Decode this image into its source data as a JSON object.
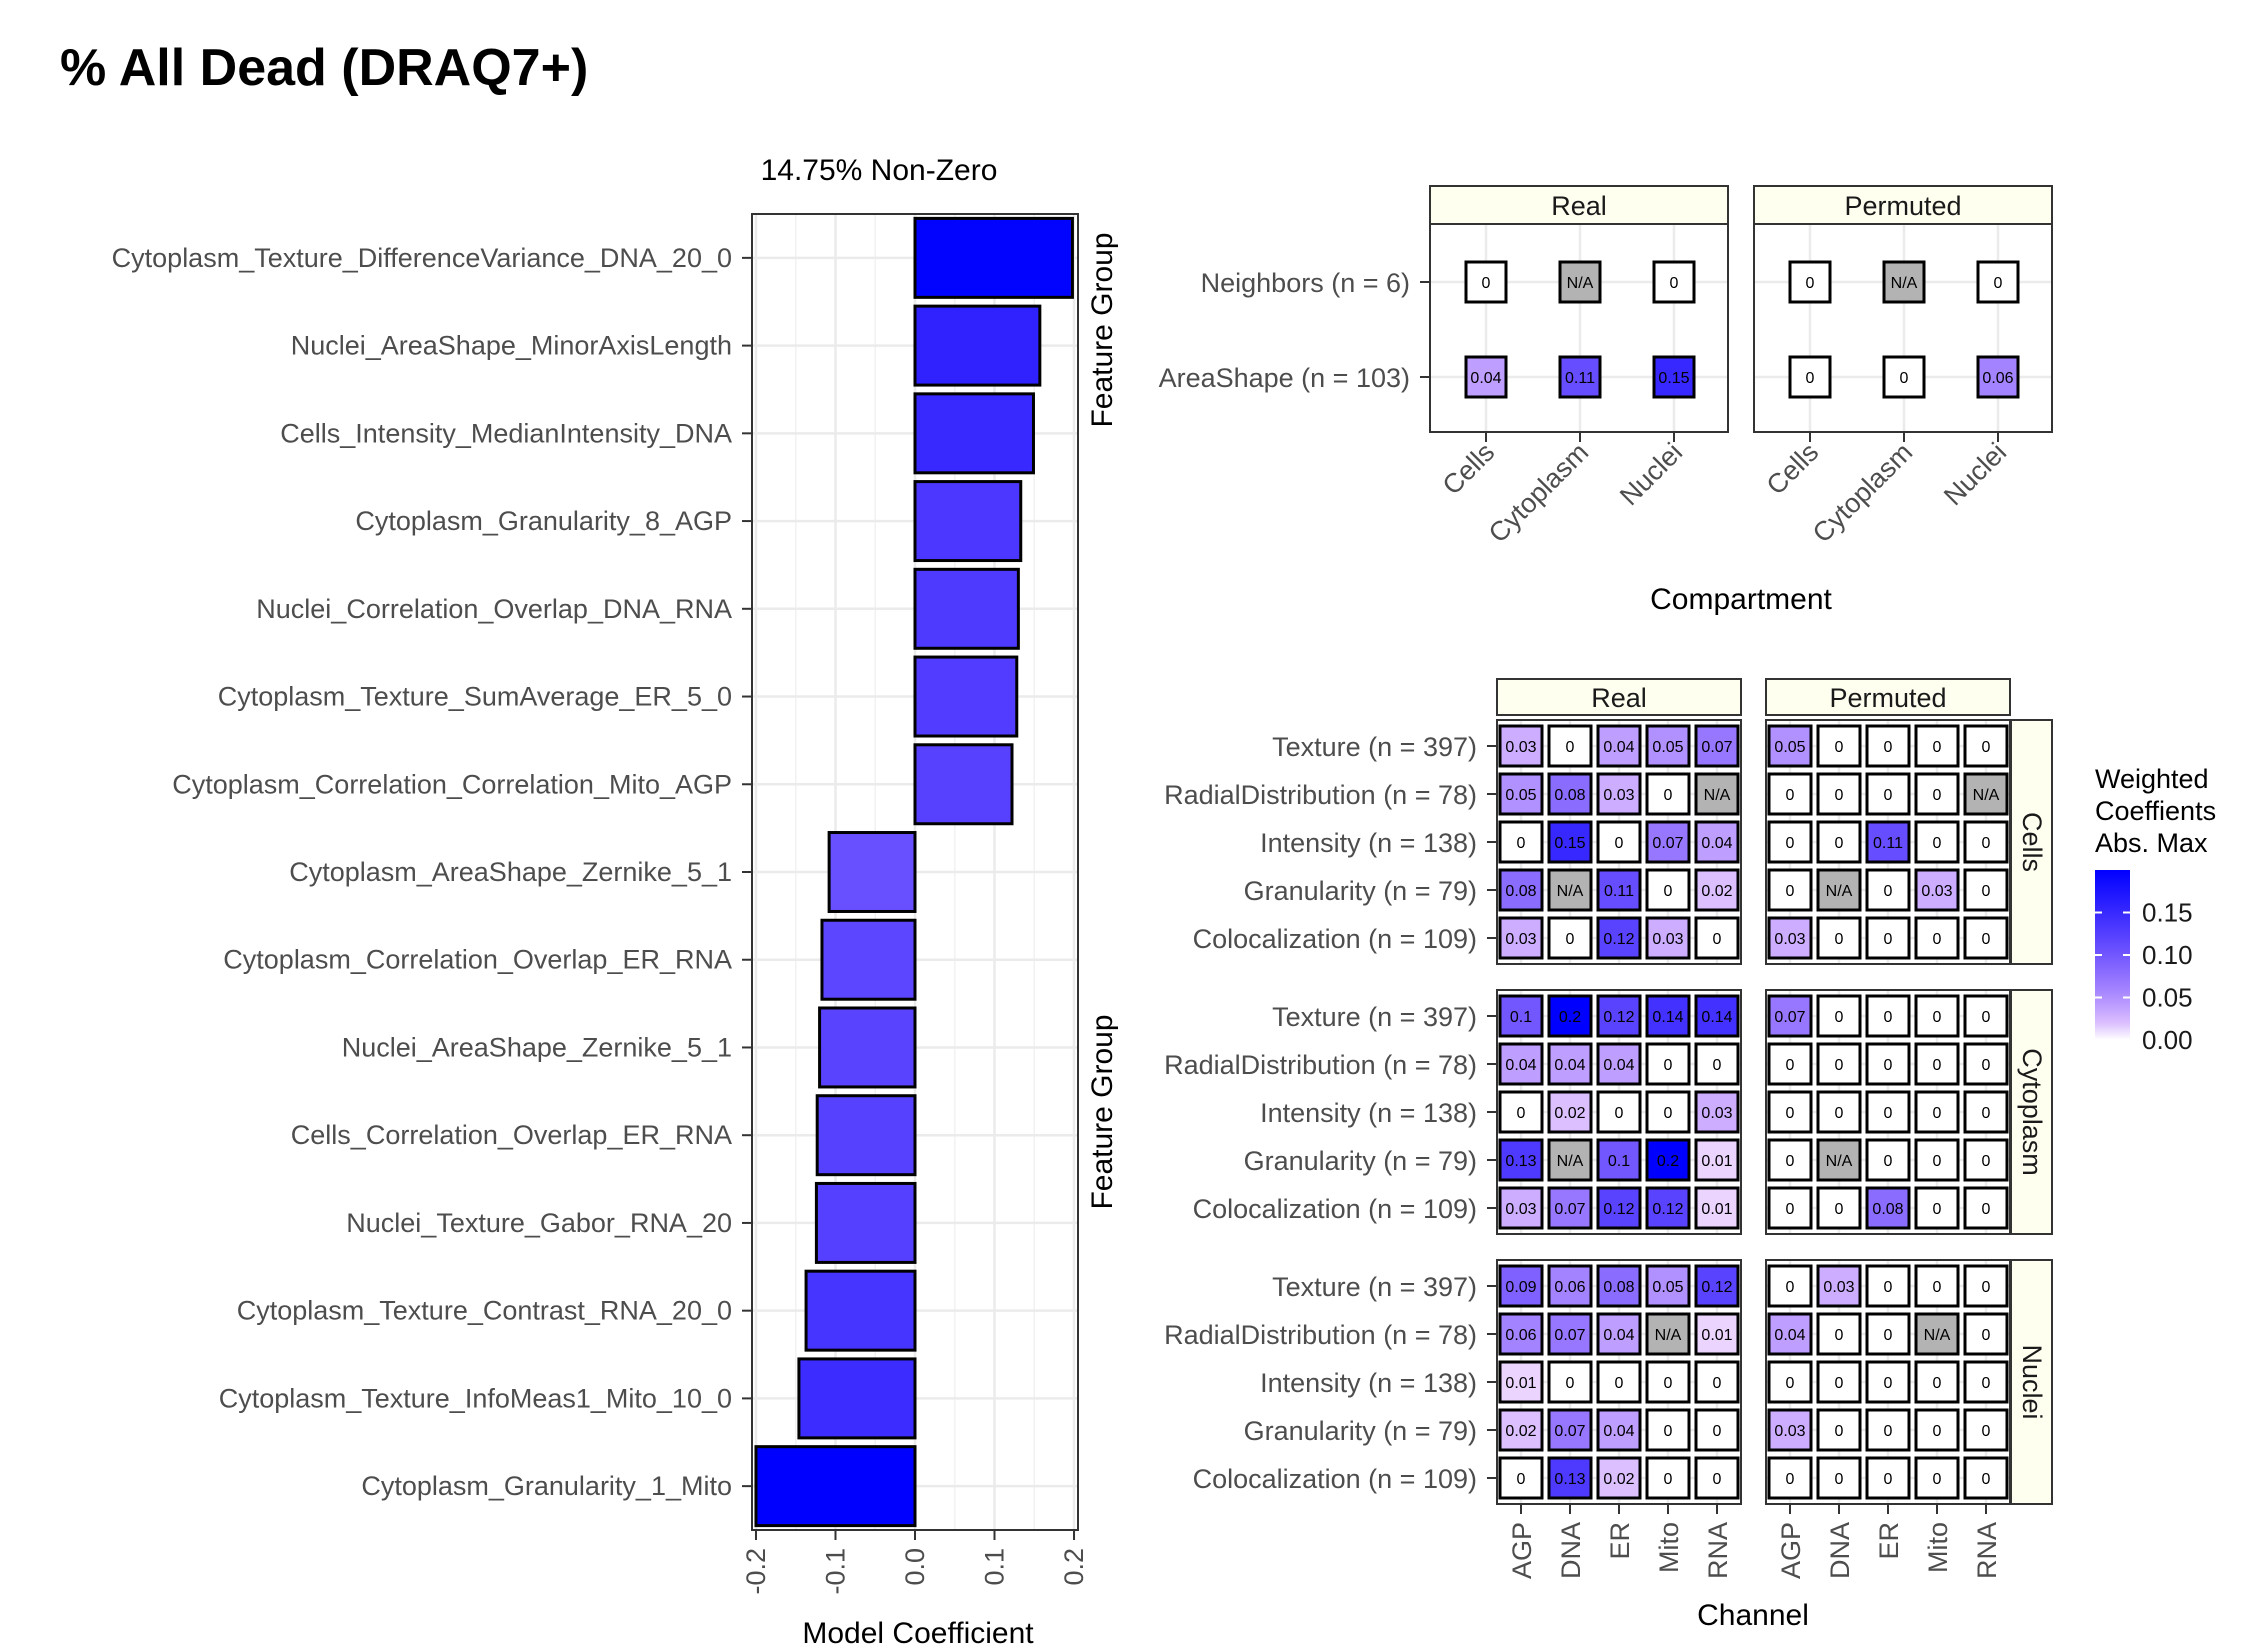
{
  "page_title": "% All Dead (DRAQ7+)",
  "colors": {
    "low": "#ffffff",
    "high": "#0000ff",
    "na": "#b3b3b3",
    "strip_bg": "#fffff0",
    "grid": "#ebebeb"
  },
  "chart_data": [
    {
      "type": "bar",
      "orientation": "horizontal",
      "title": "14.75% Non-Zero",
      "xlabel": "Model Coefficient",
      "ylabel": "",
      "xlim": [
        -0.205,
        0.205
      ],
      "xticks": [
        "-0.2",
        "-0.1",
        "0.0",
        "0.1",
        "0.2"
      ],
      "xtick_values": [
        -0.2,
        -0.1,
        0.0,
        0.1,
        0.2
      ],
      "categories": [
        "Cytoplasm_Texture_DifferenceVariance_DNA_20_0",
        "Nuclei_AreaShape_MinorAxisLength",
        "Cells_Intensity_MedianIntensity_DNA",
        "Cytoplasm_Granularity_8_AGP",
        "Nuclei_Correlation_Overlap_DNA_RNA",
        "Cytoplasm_Texture_SumAverage_ER_5_0",
        "Cytoplasm_Correlation_Correlation_Mito_AGP",
        "Cytoplasm_AreaShape_Zernike_5_1",
        "Cytoplasm_Correlation_Overlap_ER_RNA",
        "Nuclei_AreaShape_Zernike_5_1",
        "Cells_Correlation_Overlap_ER_RNA",
        "Nuclei_Texture_Gabor_RNA_20",
        "Cytoplasm_Texture_Contrast_RNA_20_0",
        "Cytoplasm_Texture_InfoMeas1_Mito_10_0",
        "Cytoplasm_Granularity_1_Mito"
      ],
      "values": [
        0.198,
        0.157,
        0.149,
        0.133,
        0.13,
        0.128,
        0.122,
        -0.108,
        -0.117,
        -0.12,
        -0.123,
        -0.124,
        -0.137,
        -0.146,
        -0.2
      ]
    },
    {
      "type": "heatmap",
      "title": "",
      "xlabel": "Compartment",
      "ylabel": "Feature Group",
      "panels": [
        "Real",
        "Permuted"
      ],
      "x": [
        "Cells",
        "Cytoplasm",
        "Nuclei"
      ],
      "y": [
        "Neighbors (n = 6)",
        "AreaShape (n = 103)"
      ],
      "values": {
        "Real": [
          [
            "0",
            "N/A",
            "0"
          ],
          [
            "0.04",
            "0.11",
            "0.15"
          ]
        ],
        "Permuted": [
          [
            "0",
            "N/A",
            "0"
          ],
          [
            "0",
            "0",
            "0.06"
          ]
        ]
      }
    },
    {
      "type": "heatmap",
      "title": "",
      "xlabel": "Channel",
      "ylabel": "Feature Group",
      "panels": [
        "Real",
        "Permuted"
      ],
      "rows_facets": [
        "Cells",
        "Cytoplasm",
        "Nuclei"
      ],
      "x": [
        "AGP",
        "DNA",
        "ER",
        "Mito",
        "RNA"
      ],
      "y": [
        "Texture (n = 397)",
        "RadialDistribution (n = 78)",
        "Intensity (n = 138)",
        "Granularity (n = 79)",
        "Colocalization (n = 109)"
      ],
      "values": {
        "Cells": {
          "Real": [
            [
              "0.03",
              "0",
              "0.04",
              "0.05",
              "0.07"
            ],
            [
              "0.05",
              "0.08",
              "0.03",
              "0",
              "N/A"
            ],
            [
              "0",
              "0.15",
              "0",
              "0.07",
              "0.04"
            ],
            [
              "0.08",
              "N/A",
              "0.11",
              "0",
              "0.02"
            ],
            [
              "0.03",
              "0",
              "0.12",
              "0.03",
              "0"
            ]
          ],
          "Permuted": [
            [
              "0.05",
              "0",
              "0",
              "0",
              "0"
            ],
            [
              "0",
              "0",
              "0",
              "0",
              "N/A"
            ],
            [
              "0",
              "0",
              "0.11",
              "0",
              "0"
            ],
            [
              "0",
              "N/A",
              "0",
              "0.03",
              "0"
            ],
            [
              "0.03",
              "0",
              "0",
              "0",
              "0"
            ]
          ]
        },
        "Cytoplasm": {
          "Real": [
            [
              "0.1",
              "0.2",
              "0.12",
              "0.14",
              "0.14"
            ],
            [
              "0.04",
              "0.04",
              "0.04",
              "0",
              "0"
            ],
            [
              "0",
              "0.02",
              "0",
              "0",
              "0.03"
            ],
            [
              "0.13",
              "N/A",
              "0.1",
              "0.2",
              "0.01"
            ],
            [
              "0.03",
              "0.07",
              "0.12",
              "0.12",
              "0.01"
            ]
          ],
          "Permuted": [
            [
              "0.07",
              "0",
              "0",
              "0",
              "0"
            ],
            [
              "0",
              "0",
              "0",
              "0",
              "0"
            ],
            [
              "0",
              "0",
              "0",
              "0",
              "0"
            ],
            [
              "0",
              "N/A",
              "0",
              "0",
              "0"
            ],
            [
              "0",
              "0",
              "0.08",
              "0",
              "0"
            ]
          ]
        },
        "Nuclei": {
          "Real": [
            [
              "0.09",
              "0.06",
              "0.08",
              "0.05",
              "0.12"
            ],
            [
              "0.06",
              "0.07",
              "0.04",
              "N/A",
              "0.01"
            ],
            [
              "0.01",
              "0",
              "0",
              "0",
              "0"
            ],
            [
              "0.02",
              "0.07",
              "0.04",
              "0",
              "0"
            ],
            [
              "0",
              "0.13",
              "0.02",
              "0",
              "0"
            ]
          ],
          "Permuted": [
            [
              "0",
              "0.03",
              "0",
              "0",
              "0"
            ],
            [
              "0.04",
              "0",
              "0",
              "N/A",
              "0"
            ],
            [
              "0",
              "0",
              "0",
              "0",
              "0"
            ],
            [
              "0.03",
              "0",
              "0",
              "0",
              "0"
            ],
            [
              "0",
              "0",
              "0",
              "0",
              "0"
            ]
          ]
        }
      }
    }
  ],
  "legend": {
    "title_lines": [
      "Weighted",
      "Coeffients",
      "Abs. Max"
    ],
    "ticks": [
      "0.15",
      "0.10",
      "0.05",
      "0.00"
    ],
    "tick_values": [
      0.15,
      0.1,
      0.05,
      0.0
    ],
    "max": 0.2
  }
}
